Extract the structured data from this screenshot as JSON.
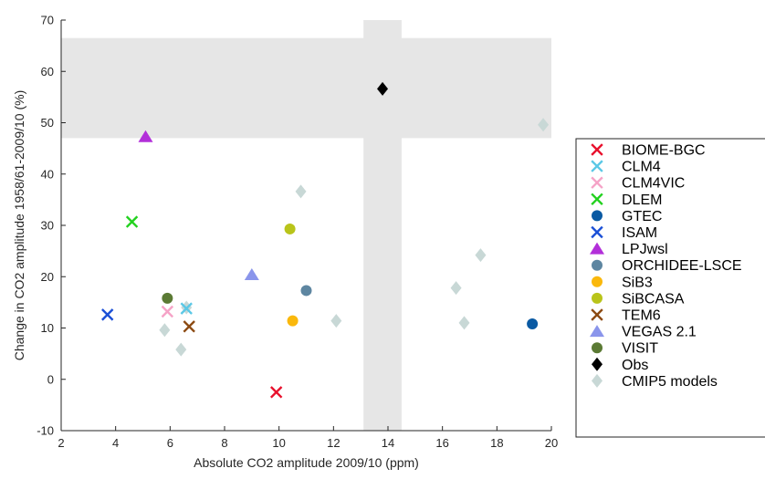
{
  "chart_data": {
    "type": "scatter",
    "xlabel": "Absolute CO2 amplitude 2009/10 (ppm)",
    "ylabel": "Change in CO2 amplitude 1958/61-2009/10 (%)",
    "xlim": [
      2,
      20
    ],
    "ylim": [
      -10,
      70
    ],
    "xticks": [
      2,
      4,
      6,
      8,
      10,
      12,
      14,
      16,
      18,
      20
    ],
    "yticks": [
      -10,
      0,
      10,
      20,
      30,
      40,
      50,
      60,
      70
    ],
    "grid": false,
    "legend_placement": "right",
    "obs_bands": {
      "x_range": [
        13.1,
        14.5
      ],
      "y_range": [
        47,
        66.5
      ],
      "color": "#e6e6e6"
    },
    "series": [
      {
        "name": "BIOME-BGC",
        "marker": "x",
        "color": "#e8112d",
        "points": [
          {
            "x": 9.9,
            "y": -2.5
          }
        ]
      },
      {
        "name": "CLM4",
        "marker": "x",
        "color": "#5bc8e6",
        "points": [
          {
            "x": 6.6,
            "y": 13.8
          }
        ]
      },
      {
        "name": "CLM4VIC",
        "marker": "x",
        "color": "#f5a3c7",
        "points": [
          {
            "x": 5.9,
            "y": 13.2
          }
        ]
      },
      {
        "name": "DLEM",
        "marker": "x",
        "color": "#22d11e",
        "points": [
          {
            "x": 4.6,
            "y": 30.7
          }
        ]
      },
      {
        "name": "GTEC",
        "marker": "circle",
        "color": "#0a5aa3",
        "points": [
          {
            "x": 19.3,
            "y": 10.8
          }
        ]
      },
      {
        "name": "ISAM",
        "marker": "x",
        "color": "#1a4fd6",
        "points": [
          {
            "x": 3.7,
            "y": 12.6
          }
        ]
      },
      {
        "name": "LPJwsl",
        "marker": "triangle",
        "color": "#b22fd9",
        "points": [
          {
            "x": 5.1,
            "y": 47.3
          }
        ]
      },
      {
        "name": "ORCHIDEE-LSCE",
        "marker": "circle",
        "color": "#5e86a1",
        "points": [
          {
            "x": 11.0,
            "y": 17.3
          }
        ]
      },
      {
        "name": "SiB3",
        "marker": "circle",
        "color": "#fab80c",
        "points": [
          {
            "x": 10.5,
            "y": 11.4
          }
        ]
      },
      {
        "name": "SiBCASA",
        "marker": "circle",
        "color": "#b9c41a",
        "points": [
          {
            "x": 10.4,
            "y": 29.3
          }
        ]
      },
      {
        "name": "TEM6",
        "marker": "x",
        "color": "#8c4a12",
        "points": [
          {
            "x": 6.7,
            "y": 10.3
          }
        ]
      },
      {
        "name": "VEGAS 2.1",
        "marker": "triangle",
        "color": "#8a95eb",
        "points": [
          {
            "x": 9.0,
            "y": 20.4
          }
        ]
      },
      {
        "name": "VISIT",
        "marker": "circle",
        "color": "#5b7a34",
        "points": [
          {
            "x": 5.9,
            "y": 15.8
          }
        ]
      },
      {
        "name": "Obs",
        "marker": "diamond",
        "color": "#000000",
        "points": [
          {
            "x": 13.8,
            "y": 56.6
          }
        ]
      },
      {
        "name": "CMIP5 models",
        "marker": "diamond",
        "color": "#c8d8d6",
        "points": [
          {
            "x": 5.8,
            "y": 9.6
          },
          {
            "x": 6.4,
            "y": 5.8
          },
          {
            "x": 6.6,
            "y": 14.0
          },
          {
            "x": 10.8,
            "y": 36.6
          },
          {
            "x": 12.1,
            "y": 11.4
          },
          {
            "x": 16.5,
            "y": 17.8
          },
          {
            "x": 16.8,
            "y": 11.0
          },
          {
            "x": 17.4,
            "y": 24.2
          },
          {
            "x": 19.7,
            "y": 49.6
          }
        ]
      }
    ]
  }
}
